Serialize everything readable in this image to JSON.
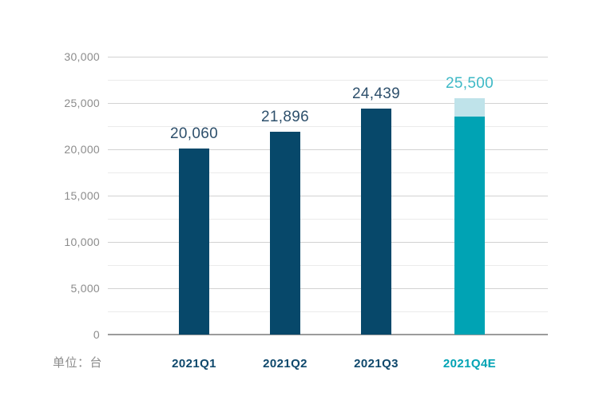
{
  "chart_data": {
    "type": "bar",
    "title": "",
    "unit_label": "单位：台",
    "categories": [
      "2021Q1",
      "2021Q2",
      "2021Q3",
      "2021Q4E"
    ],
    "values": [
      20060,
      21896,
      24439,
      25500
    ],
    "series": [
      {
        "name": "quarterly-deliveries",
        "values": [
          20060,
          21896,
          24439,
          25500
        ]
      }
    ],
    "bars": [
      {
        "category": "2021Q1",
        "value": 20060,
        "label": "20,060",
        "style": "actual"
      },
      {
        "category": "2021Q2",
        "value": 21896,
        "label": "21,896",
        "style": "actual"
      },
      {
        "category": "2021Q3",
        "value": 24439,
        "label": "24,439",
        "style": "actual"
      },
      {
        "category": "2021Q4E",
        "value": 25500,
        "label": "25,500",
        "style": "estimate",
        "segments": [
          {
            "from": 0,
            "to": 23500,
            "style": "estimate_solid"
          },
          {
            "from": 23500,
            "to": 25500,
            "style": "estimate_range"
          }
        ]
      }
    ],
    "ylim": [
      0,
      30000
    ],
    "ytick_interval": 5000,
    "minor_gridline_interval": 2500,
    "yticks": [
      {
        "value": 0,
        "label": "0"
      },
      {
        "value": 5000,
        "label": "5,000"
      },
      {
        "value": 10000,
        "label": "10,000"
      },
      {
        "value": 15000,
        "label": "15,000"
      },
      {
        "value": 20000,
        "label": "20,000"
      },
      {
        "value": 25000,
        "label": "25,000"
      },
      {
        "value": 30000,
        "label": "30,000"
      }
    ],
    "grid": "horizontal",
    "legend": "none",
    "colors": {
      "bar_actual": "#07486A",
      "bar_estimate": "#00A3B4",
      "bar_estimate_range": "#BFE3EA",
      "label_actual": "#2E506C",
      "label_estimate": "#3EB9C6",
      "xlabel_actual": "#0E486C",
      "xlabel_estimate": "#00A3B4",
      "axis_text": "#8C8C8C",
      "gridline_major": "#D2D2D2",
      "gridline_minor": "#EBEBEB",
      "baseline": "#9C9C9C"
    }
  }
}
